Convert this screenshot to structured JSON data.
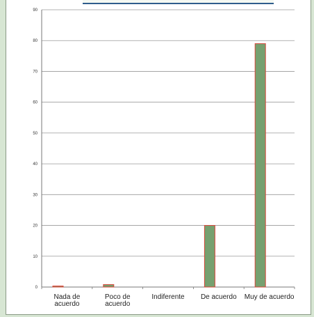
{
  "chart_data": {
    "type": "bar",
    "title": "",
    "xlabel": "",
    "ylabel": "",
    "categories": [
      "Nada de acuerdo",
      "Poco de acuerdo",
      "Indiferente",
      "De acuerdo",
      "Muy de acuerdo"
    ],
    "category_label_lines": [
      [
        "Nada de",
        "acuerdo"
      ],
      [
        "Poco de",
        "acuerdo"
      ],
      [
        "Indiferente"
      ],
      [
        "De acuerdo"
      ],
      [
        "Muy de acuerdo"
      ]
    ],
    "values": [
      0.3,
      0.8,
      0,
      20,
      79
    ],
    "ylim": [
      0,
      90
    ],
    "yticks": [
      0,
      10,
      20,
      30,
      40,
      50,
      60,
      70,
      80,
      90
    ],
    "grid": true,
    "legend": "none",
    "colors": {
      "bar_fill": "#76a06f",
      "bar_border": "#d9463a",
      "grid": "#9a9a9a",
      "background": "#d7e6d3"
    }
  }
}
